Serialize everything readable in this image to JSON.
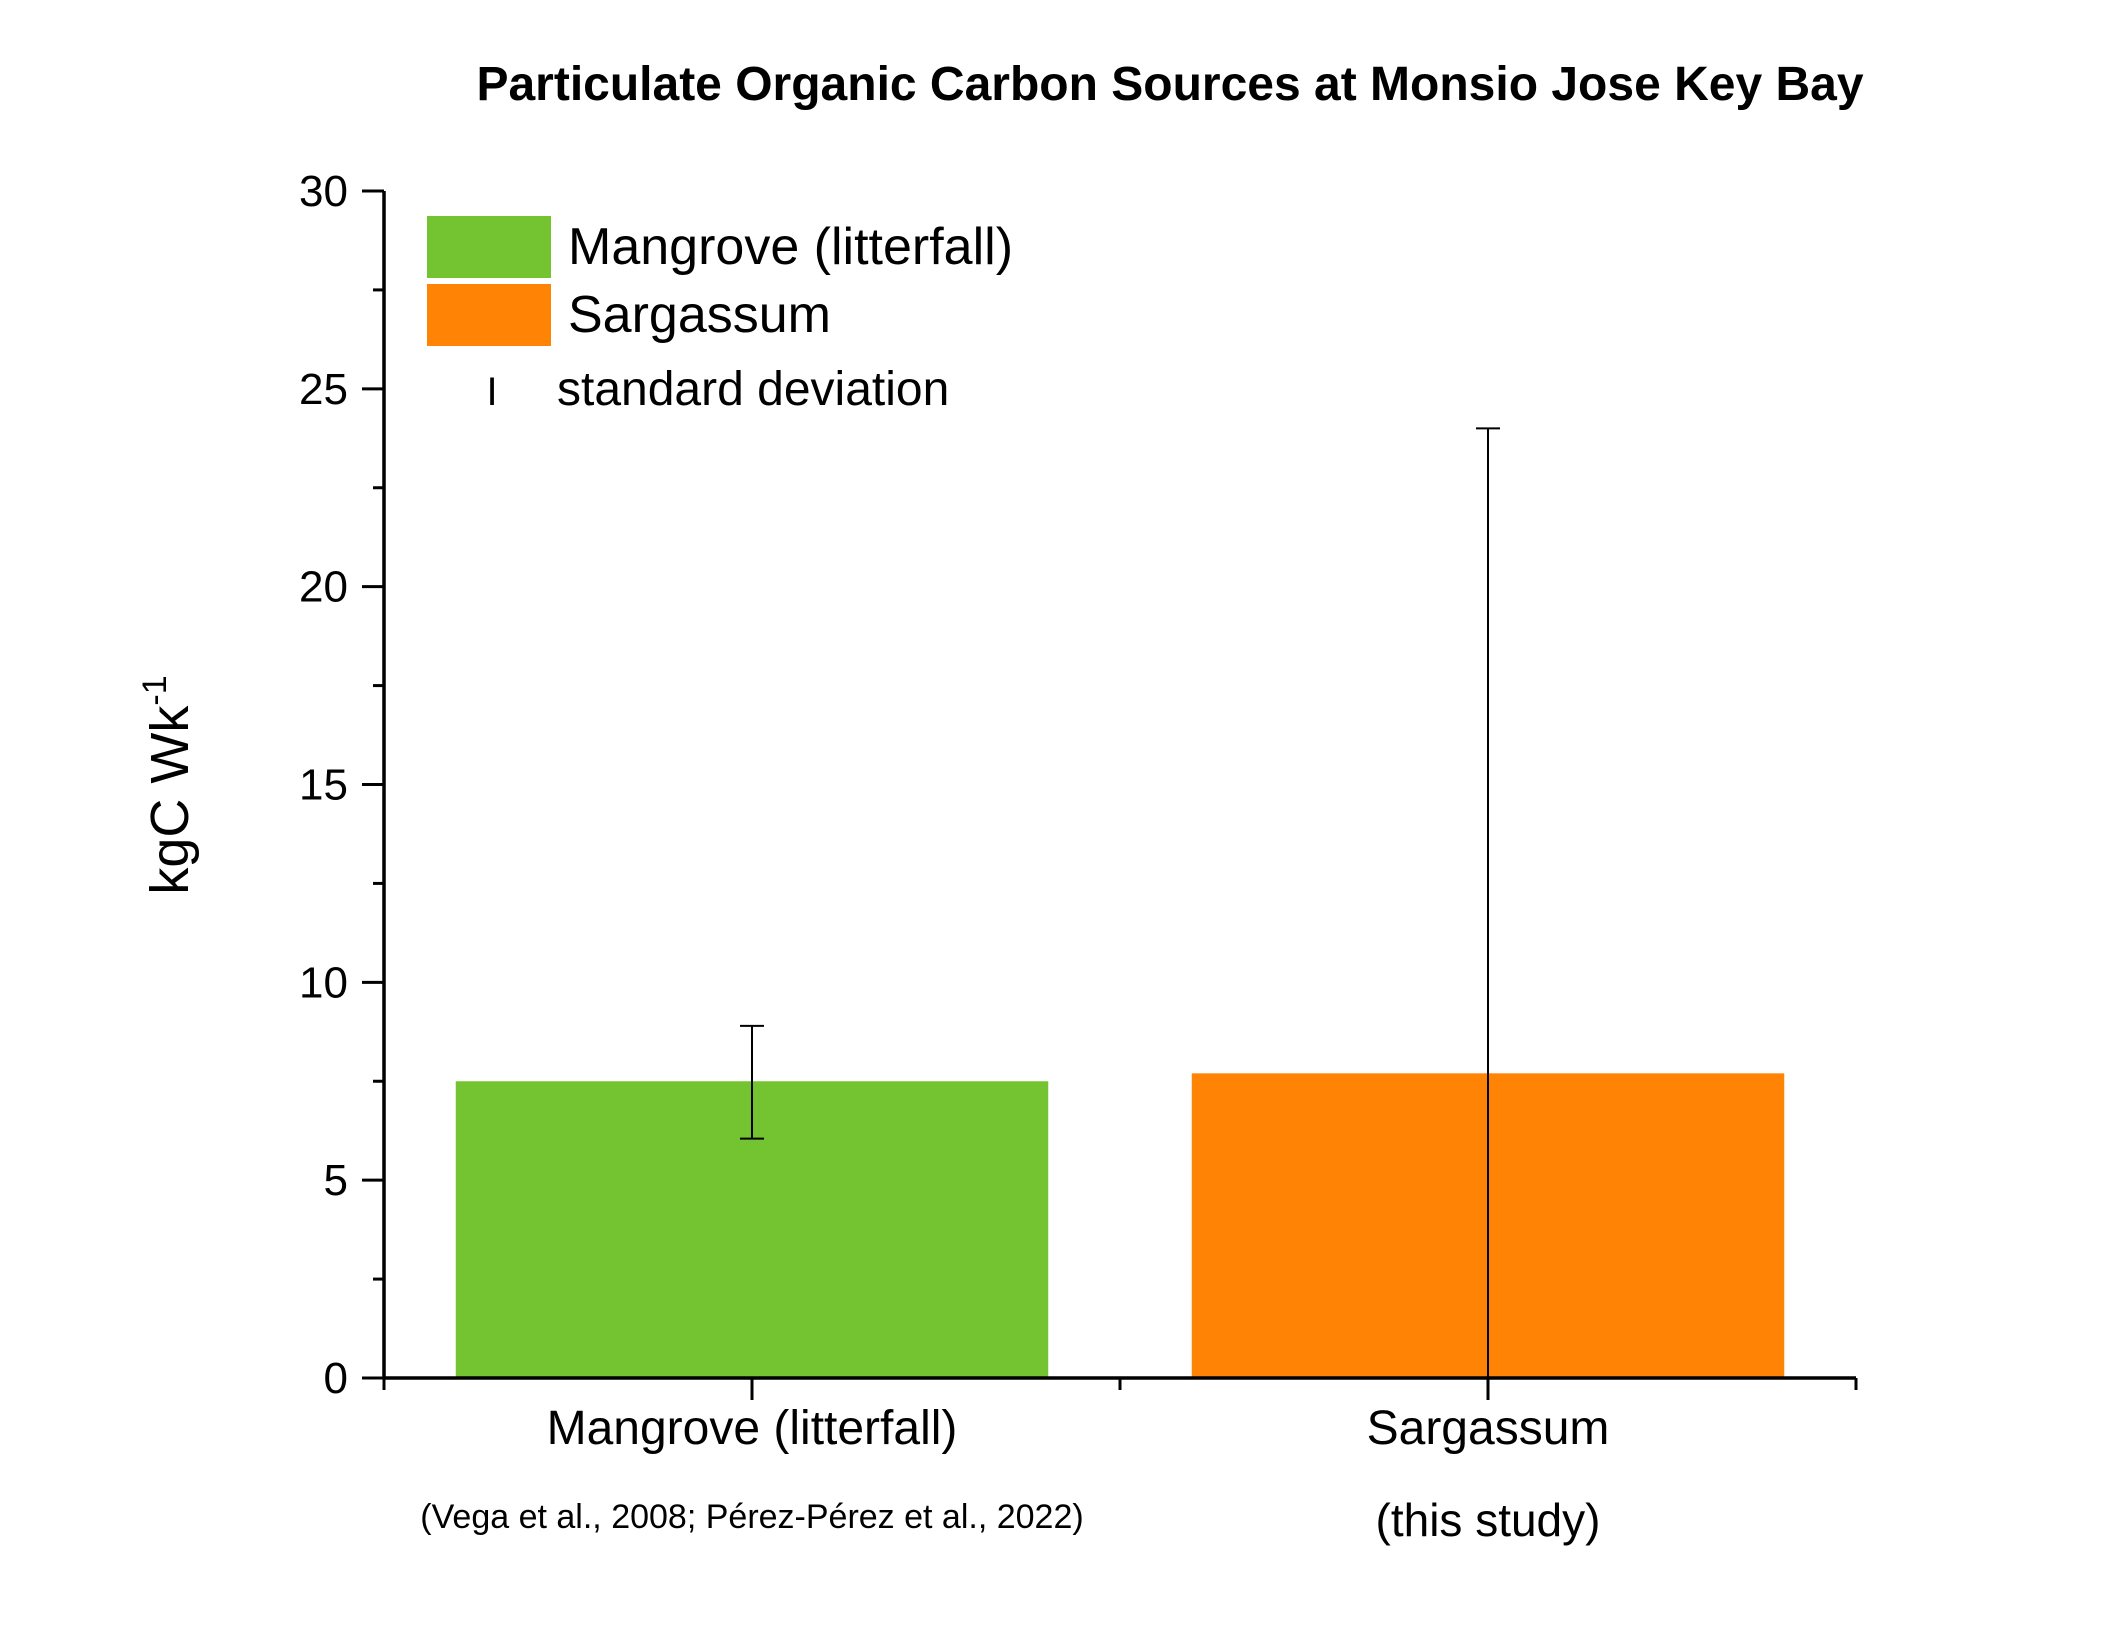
{
  "chart_data": {
    "type": "bar",
    "title": "Particulate Organic Carbon Sources at Monsio Jose Key Bay",
    "ylabel": "kgC Wk",
    "ylabel_superscript": "-1",
    "xlabel": "",
    "ylim": [
      0,
      30
    ],
    "yticks": [
      0,
      5,
      10,
      15,
      20,
      25,
      30
    ],
    "y_minor_step": 2.5,
    "grid": false,
    "legend_position": "top-left",
    "categories": [
      "Mangrove (litterfall)",
      "Sargassum"
    ],
    "category_notes": [
      "(Vega et al., 2008; Pérez-Pérez et al., 2022)",
      "(this study)"
    ],
    "values": [
      7.5,
      7.7
    ],
    "error_low": [
      6.05,
      0
    ],
    "error_high": [
      8.9,
      24.0
    ],
    "colors": [
      "#74C432",
      "#FF8405"
    ],
    "legend": [
      {
        "label": "Mangrove (litterfall)",
        "color": "#74C432"
      },
      {
        "label": "Sargassum",
        "color": "#FF8405"
      },
      {
        "label": "standard deviation",
        "marker": "I"
      }
    ]
  }
}
